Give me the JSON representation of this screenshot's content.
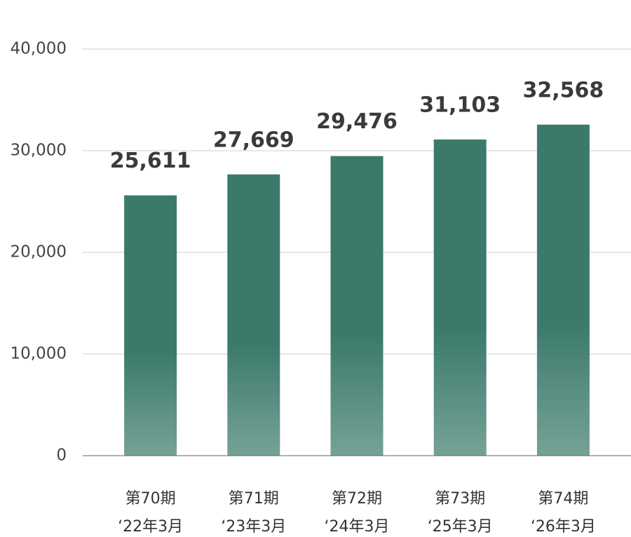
{
  "chart_data": {
    "type": "bar",
    "categories": [
      [
        "第70期",
        "‘22年3月"
      ],
      [
        "第71期",
        "‘23年3月"
      ],
      [
        "第72期",
        "‘24年3月"
      ],
      [
        "第73期",
        "‘25年3月"
      ],
      [
        "第74期",
        "‘26年3月"
      ]
    ],
    "values": [
      25611,
      27669,
      29476,
      31103,
      32568
    ],
    "value_labels": [
      "25,611",
      "27,669",
      "29,476",
      "31,103",
      "32,568"
    ],
    "color": "#3b7a6b",
    "ylim": [
      0,
      40000
    ],
    "yticks": [
      0,
      {
        "value": 10000,
        "label": "10,000"
      },
      {
        "value": 20000,
        "label": "20,000"
      },
      {
        "value": 30000,
        "label": "30,000"
      },
      {
        "value": 40000,
        "label": "40,000"
      }
    ],
    "grid": true
  }
}
